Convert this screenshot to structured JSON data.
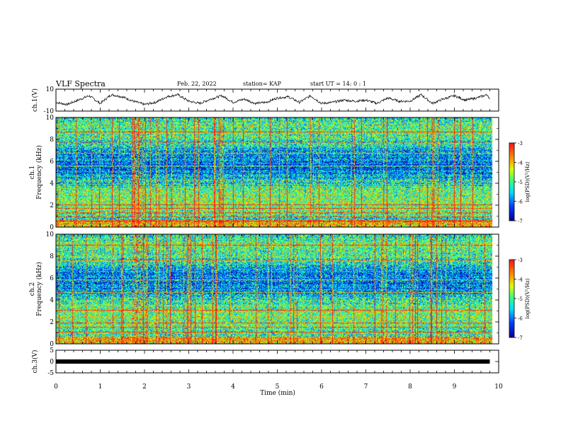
{
  "header": {
    "title": "VLF Spectra",
    "date": "Feb. 22, 2022",
    "station": "station= KAP",
    "start": "start  UT =   14: 0   : 1"
  },
  "chart_data": [
    {
      "type": "line",
      "ylabel": "ch.1(V)",
      "xlim": [
        0,
        10
      ],
      "ylim": [
        -10,
        10
      ],
      "yticks": [
        "10",
        "-10"
      ],
      "x": [
        0,
        0.25,
        0.5,
        0.75,
        1,
        1.25,
        1.5,
        1.75,
        2,
        2.25,
        2.5,
        2.75,
        3,
        3.25,
        3.5,
        3.75,
        4,
        4.25,
        4.5,
        4.75,
        5,
        5.25,
        5.5,
        5.75,
        6,
        6.25,
        6.5,
        6.75,
        7,
        7.25,
        7.5,
        7.75,
        8,
        8.25,
        8.5,
        8.75,
        9,
        9.25,
        9.5,
        9.75,
        9.8
      ],
      "y": [
        -2,
        -4,
        0,
        4,
        -3,
        5,
        3,
        -1,
        -4,
        -2,
        3,
        5,
        -1,
        -3,
        1,
        4,
        -2,
        1,
        -3,
        -2,
        2,
        3,
        -2,
        4,
        -3,
        -2,
        0,
        -1,
        0,
        -3,
        2,
        -1,
        -1,
        5,
        -3,
        1,
        4,
        0,
        2,
        5,
        0
      ]
    },
    {
      "type": "heatmap",
      "ylabel": "ch.1\nFrequency (kHz)",
      "xlim": [
        0,
        10
      ],
      "ylim": [
        0,
        10
      ],
      "yticks": [
        "0",
        "2",
        "4",
        "6",
        "8",
        "10"
      ],
      "colorbar": {
        "label": "log(PSD)(V²/Hz)",
        "range": [
          -7,
          -3
        ],
        "ticks": [
          "-3",
          "-4",
          "-5",
          "-6",
          "-7"
        ]
      }
    },
    {
      "type": "heatmap",
      "ylabel": "ch.2\nFrequency (kHz)",
      "xlim": [
        0,
        10
      ],
      "ylim": [
        0,
        10
      ],
      "yticks": [
        "0",
        "2",
        "4",
        "6",
        "8",
        "10"
      ],
      "colorbar": {
        "label": "log(PSD)(V²/Hz)",
        "range": [
          -7,
          -3
        ],
        "ticks": [
          "-3",
          "-4",
          "-5",
          "-6",
          "-7"
        ]
      }
    },
    {
      "type": "line",
      "ylabel": "ch.3(V)",
      "xlim": [
        0,
        10
      ],
      "ylim": [
        -5,
        5
      ],
      "yticks": [
        "5",
        "0",
        "-5"
      ],
      "x": [
        0,
        9.8
      ],
      "y": [
        0,
        0
      ],
      "xlabel": "Time (min)",
      "xticks": [
        "0",
        "1",
        "2",
        "3",
        "4",
        "5",
        "6",
        "7",
        "8",
        "9",
        "10"
      ]
    }
  ]
}
